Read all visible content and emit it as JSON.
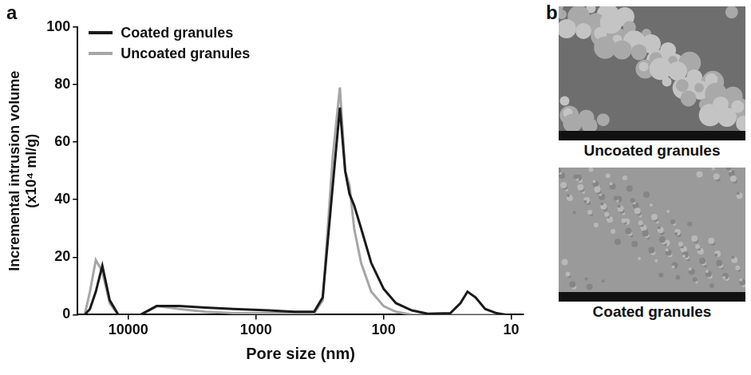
{
  "panel_labels": [
    "a",
    "b"
  ],
  "chart_data": {
    "type": "line",
    "x_label": "Pore size (nm)",
    "y_label": [
      "Incremental intrusion volume",
      "(x10⁴ ml/g)"
    ],
    "x": [
      22000,
      20000,
      18000,
      16000,
      14000,
      12000,
      8000,
      6000,
      4000,
      2500,
      1500,
      800,
      500,
      350,
      300,
      250,
      220,
      200,
      185,
      170,
      150,
      125,
      100,
      80,
      60,
      45,
      30,
      25,
      22,
      19,
      16,
      13,
      11
    ],
    "series": [
      {
        "name": "Coated granules",
        "color": "#1a1a1a",
        "values": [
          0,
          2,
          8,
          17,
          5,
          0,
          0,
          3,
          3,
          2.5,
          2,
          1.5,
          1,
          1,
          6,
          45,
          72,
          50,
          42,
          38,
          30,
          18,
          9,
          4,
          1.5,
          0.3,
          0.5,
          4,
          8,
          6,
          2,
          0.5,
          0
        ]
      },
      {
        "name": "Uncoated granules",
        "color": "#a6a6a6",
        "values": [
          0,
          8,
          19,
          15,
          4,
          0,
          0,
          3,
          2,
          1,
          0.5,
          0.5,
          0.5,
          0.5,
          5,
          55,
          79,
          50,
          45,
          30,
          18,
          8,
          3,
          1,
          0,
          0,
          0,
          0,
          0,
          0,
          0,
          0,
          0
        ]
      }
    ],
    "log": "x",
    "xlim": [
      25000,
      8
    ],
    "xticks": [
      10000,
      1000,
      100,
      10
    ],
    "ylim": [
      0,
      100
    ],
    "yticks": [
      0,
      20,
      40,
      60,
      80,
      100
    ],
    "grid": false,
    "legend": "top left"
  },
  "images": [
    {
      "caption": "Uncoated granules"
    },
    {
      "caption": "Coated granules"
    }
  ]
}
